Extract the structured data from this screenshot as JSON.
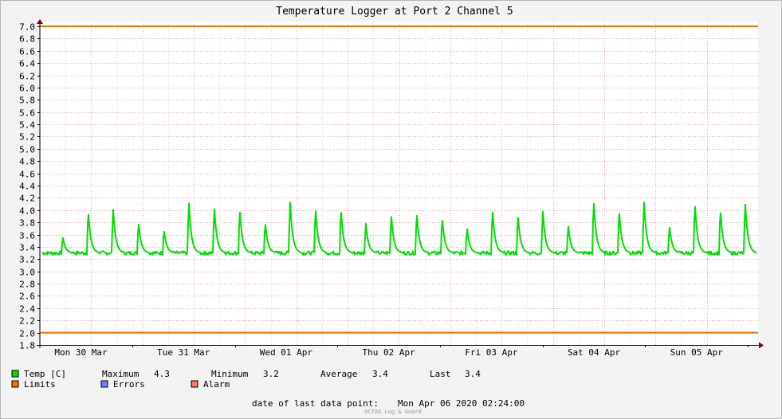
{
  "chart_data": {
    "type": "line",
    "title": "Temperature Logger at Port 2 Channel 5",
    "ylim": [
      1.8,
      7.0
    ],
    "y_ticks": [
      "7.0",
      "6.8",
      "6.6",
      "6.4",
      "6.2",
      "6.0",
      "5.8",
      "5.6",
      "5.4",
      "5.2",
      "5.0",
      "4.8",
      "4.6",
      "4.4",
      "4.2",
      "4.0",
      "3.8",
      "3.6",
      "3.4",
      "3.2",
      "3.0",
      "2.8",
      "2.6",
      "2.4",
      "2.2",
      "2.0",
      "1.8"
    ],
    "x_labels": [
      "Mon 30 Mar",
      "Tue 31 Mar",
      "Wed 01 Apr",
      "Thu 02 Apr",
      "Fri 03 Apr",
      "Sat 04 Apr",
      "Sun 05 Apr"
    ],
    "upper_limit": 7.0,
    "lower_limit": 2.0,
    "series": [
      {
        "name": "Temp [C]",
        "color": "#00e000",
        "baseline": 3.3,
        "spikes": [
          3.6,
          4.13,
          4.05,
          3.84,
          3.74,
          4.12,
          4.09,
          4.1,
          3.91,
          4.17,
          4.09,
          4.13,
          3.78,
          3.95,
          4.03,
          3.99,
          3.71,
          4.06,
          4.02,
          3.98,
          3.77,
          4.26,
          4.14,
          4.16,
          3.77,
          4.24,
          4.19,
          4.16
        ]
      }
    ],
    "limits_color": "#f07000",
    "errors_color": "#6f7fff",
    "alarm_color": "#ff7070"
  },
  "legend": {
    "temp_label": "Temp [C]",
    "maximum_label": "Maximum",
    "maximum_value": "4.3",
    "minimum_label": "Minimum",
    "minimum_value": "3.2",
    "average_label": "Average",
    "average_value": "3.4",
    "last_label": "Last",
    "last_value": "3.4",
    "limits_label": "Limits",
    "errors_label": "Errors",
    "alarm_label": "Alarm"
  },
  "footer": {
    "last_data_point_label": "date of last data point:",
    "last_data_point_value": "Mon Apr 06 2020 02:24:00",
    "watermark": "OCTA5 Log & Guard"
  }
}
